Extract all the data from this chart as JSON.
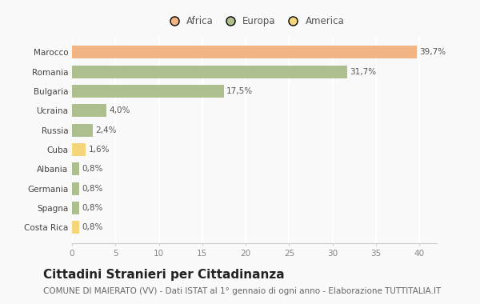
{
  "categories": [
    "Marocco",
    "Romania",
    "Bulgaria",
    "Ucraina",
    "Russia",
    "Cuba",
    "Albania",
    "Germania",
    "Spagna",
    "Costa Rica"
  ],
  "values": [
    39.7,
    31.7,
    17.5,
    4.0,
    2.4,
    1.6,
    0.8,
    0.8,
    0.8,
    0.8
  ],
  "labels": [
    "39,7%",
    "31,7%",
    "17,5%",
    "4,0%",
    "2,4%",
    "1,6%",
    "0,8%",
    "0,8%",
    "0,8%",
    "0,8%"
  ],
  "colors": [
    "#F2B482",
    "#ADBF8E",
    "#ADBF8E",
    "#ADBF8E",
    "#ADBF8E",
    "#F5D57A",
    "#ADBF8E",
    "#ADBF8E",
    "#ADBF8E",
    "#F5D57A"
  ],
  "legend": [
    {
      "label": "Africa",
      "color": "#F2B482"
    },
    {
      "label": "Europa",
      "color": "#ADBF8E"
    },
    {
      "label": "America",
      "color": "#F5D57A"
    }
  ],
  "xlim": [
    0,
    42
  ],
  "xticks": [
    0,
    5,
    10,
    15,
    20,
    25,
    30,
    35,
    40
  ],
  "title": "Cittadini Stranieri per Cittadinanza",
  "subtitle": "COMUNE DI MAIERATO (VV) - Dati ISTAT al 1° gennaio di ogni anno - Elaborazione TUTTITALIA.IT",
  "background_color": "#f9f9f9",
  "grid_color": "#ffffff",
  "title_fontsize": 11,
  "subtitle_fontsize": 7.5,
  "label_fontsize": 7.5,
  "tick_fontsize": 7.5,
  "legend_fontsize": 8.5
}
